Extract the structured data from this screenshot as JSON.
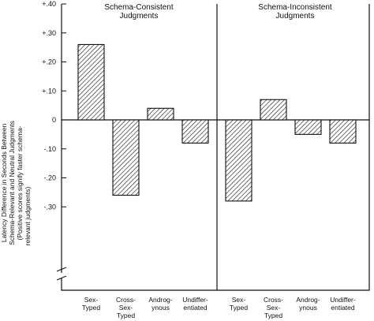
{
  "chart_data": {
    "type": "bar",
    "ylabel_lines": [
      "Latency Difference in Seconds Between",
      "Schema-Relevant and Neutral Judgments",
      "(Positive scores signify faster schema-",
      "relevant judgments)"
    ],
    "yticks": [
      {
        "value": 40,
        "label": "+.40"
      },
      {
        "value": 30,
        "label": "+.30"
      },
      {
        "value": 20,
        "label": "+.20"
      },
      {
        "value": 10,
        "label": "+.10"
      },
      {
        "value": 0,
        "label": "0"
      },
      {
        "value": -10,
        "label": "-.10"
      },
      {
        "value": -20,
        "label": "-.20"
      },
      {
        "value": -30,
        "label": "-.30"
      }
    ],
    "ylim": [
      -40,
      40
    ],
    "panels": [
      {
        "title_lines": [
          "Schema-Consistent",
          "Judgments"
        ],
        "categories": [
          {
            "lines": [
              "Sex-",
              "Typed"
            ]
          },
          {
            "lines": [
              "Cross-",
              "Sex-",
              "Typed"
            ]
          },
          {
            "lines": [
              "Androg-",
              "ynous"
            ]
          },
          {
            "lines": [
              "Undiffer-",
              "entiated"
            ]
          }
        ],
        "values": [
          26,
          -26,
          4,
          -8
        ]
      },
      {
        "title_lines": [
          "Schema-Inconsistent",
          "Judgments"
        ],
        "categories": [
          {
            "lines": [
              "Sex-",
              "Typed"
            ]
          },
          {
            "lines": [
              "Cross-",
              "Sex-",
              "Typed"
            ]
          },
          {
            "lines": [
              "Androg-",
              "ynous"
            ]
          },
          {
            "lines": [
              "Undiffer-",
              "entiated"
            ]
          }
        ],
        "values": [
          -28,
          7,
          -5,
          -8
        ]
      }
    ]
  }
}
